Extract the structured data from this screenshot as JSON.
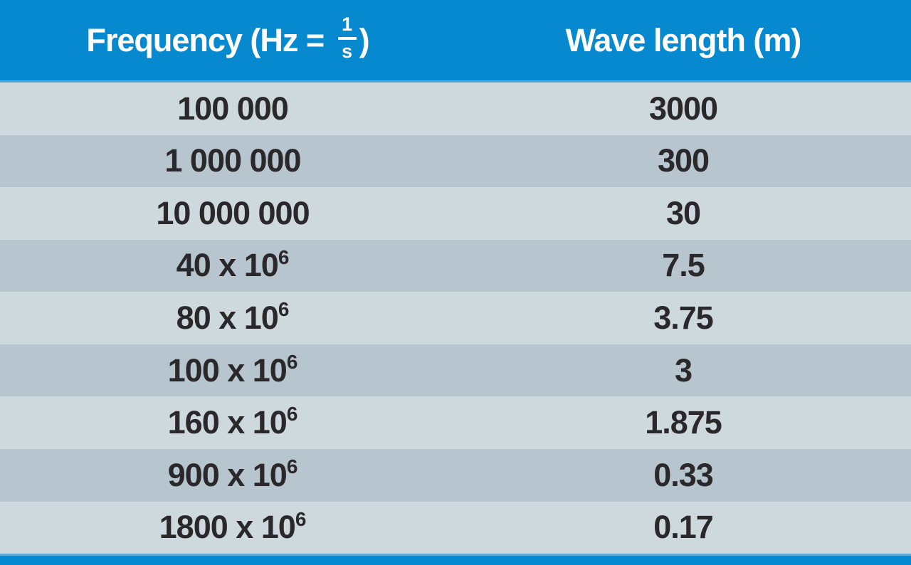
{
  "header": {
    "frequency_prefix": "Frequency (Hz = ",
    "fraction_numerator": "1",
    "fraction_denominator": "s",
    "frequency_suffix": ")",
    "wavelength_label": "Wave length (m)"
  },
  "rows": [
    {
      "f": "100 000",
      "sup": "",
      "w": "3000"
    },
    {
      "f": "1 000 000",
      "sup": "",
      "w": "300"
    },
    {
      "f": "10 000 000",
      "sup": "",
      "w": "30"
    },
    {
      "f": "40 x 10",
      "sup": "6",
      "w": "7.5"
    },
    {
      "f": "80 x 10",
      "sup": "6",
      "w": "3.75"
    },
    {
      "f": "100 x 10",
      "sup": "6",
      "w": "3"
    },
    {
      "f": "160 x 10",
      "sup": "6",
      "w": "1.875"
    },
    {
      "f": "900 x 10",
      "sup": "6",
      "w": "0.33"
    },
    {
      "f": "1800 x 10",
      "sup": "6",
      "w": "0.17"
    }
  ],
  "colors": {
    "header_blue": "#0689cf",
    "accent_light_blue": "#5aa9d8",
    "row_light": "#cdd9dd",
    "row_dark": "#b7c6ce",
    "text_dark": "#2a282b",
    "header_text": "#ffffff"
  },
  "chart_data": {
    "type": "table",
    "title": "Frequency vs Wave length",
    "columns": [
      "Frequency (Hz = 1/s)",
      "Wave length (m)"
    ],
    "rows": [
      [
        "100 000",
        "3000"
      ],
      [
        "1 000 000",
        "300"
      ],
      [
        "10 000 000",
        "30"
      ],
      [
        "40 x 10^6",
        "7.5"
      ],
      [
        "80 x 10^6",
        "3.75"
      ],
      [
        "100 x 10^6",
        "3"
      ],
      [
        "160 x 10^6",
        "1.875"
      ],
      [
        "900 x 10^6",
        "0.33"
      ],
      [
        "1800 x 10^6",
        "0.17"
      ]
    ]
  }
}
